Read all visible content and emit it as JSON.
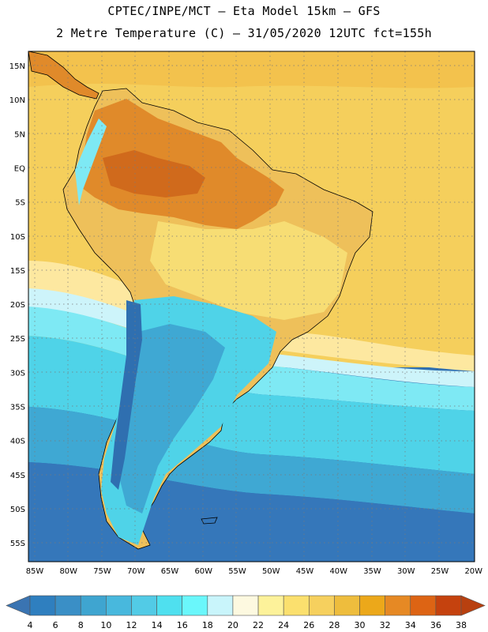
{
  "header": {
    "line1": "CPTEC/INPE/MCT –  Eta Model 15km – GFS",
    "line2": "2 Metre Temperature (C) – 31/05/2020 12UTC fct=155h"
  },
  "map": {
    "lon_labels": [
      "85W",
      "80W",
      "75W",
      "70W",
      "65W",
      "60W",
      "55W",
      "50W",
      "45W",
      "40W",
      "35W",
      "30W",
      "25W",
      "20W"
    ],
    "lat_labels": [
      "15N",
      "10N",
      "5N",
      "EQ",
      "5S",
      "10S",
      "15S",
      "20S",
      "25S",
      "30S",
      "35S",
      "40S",
      "45S",
      "50S",
      "55S"
    ],
    "lon_range": [
      -86,
      -20
    ],
    "lat_range": [
      17,
      -58
    ]
  },
  "colorbar": {
    "labels": [
      "4",
      "6",
      "8",
      "10",
      "12",
      "14",
      "16",
      "18",
      "20",
      "22",
      "24",
      "26",
      "28",
      "30",
      "32",
      "34",
      "36",
      "38"
    ],
    "colors": [
      "#3a74b2",
      "#2f7fbf",
      "#3a8fc6",
      "#3fa5d0",
      "#48b8dd",
      "#52cbe6",
      "#4fe0ef",
      "#6af7fb",
      "#c9f5fb",
      "#fdf9e0",
      "#fdf29a",
      "#fbe06e",
      "#f6d05e",
      "#eebd3d",
      "#eca81a",
      "#e68924",
      "#dd6414",
      "#c5420e",
      "#b8400f"
    ]
  }
}
